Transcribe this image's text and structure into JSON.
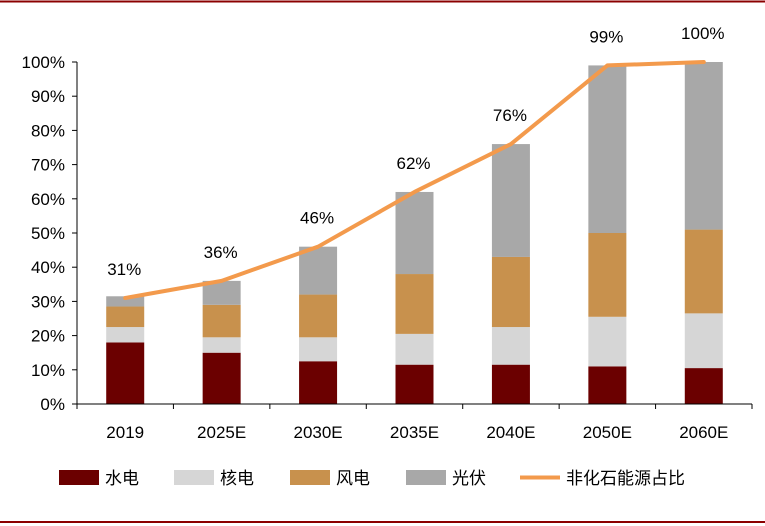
{
  "chart_data": {
    "type": "bar",
    "stacked": true,
    "title": "",
    "xlabel": "",
    "ylabel": "",
    "ylim": [
      0,
      100
    ],
    "y_ticks": [
      "0%",
      "10%",
      "20%",
      "30%",
      "40%",
      "50%",
      "60%",
      "70%",
      "80%",
      "90%",
      "100%"
    ],
    "categories": [
      "2019",
      "2025E",
      "2030E",
      "2035E",
      "2040E",
      "2050E",
      "2060E"
    ],
    "series": [
      {
        "name": "水电",
        "kind": "bar",
        "color": "#6b0000",
        "values": [
          18,
          15,
          12.5,
          11.5,
          11.5,
          11,
          10.5
        ]
      },
      {
        "name": "核电",
        "kind": "bar",
        "color": "#d6d6d6",
        "values": [
          4.5,
          4.5,
          7,
          9,
          11,
          14.5,
          16
        ]
      },
      {
        "name": "风电",
        "kind": "bar",
        "color": "#c8914d",
        "values": [
          6,
          9.5,
          12.5,
          17.5,
          20.5,
          24.5,
          24.5
        ]
      },
      {
        "name": "光伏",
        "kind": "bar",
        "color": "#a8a8a8",
        "values": [
          3,
          7,
          14,
          24,
          33,
          49,
          49
        ]
      },
      {
        "name": "非化石能源占比",
        "kind": "line",
        "color": "#f39a4c",
        "values": [
          31,
          36,
          46,
          62,
          76,
          99,
          100
        ]
      }
    ],
    "data_labels": [
      "31%",
      "36%",
      "46%",
      "62%",
      "76%",
      "99%",
      "100%"
    ],
    "legend_position": "bottom",
    "grid": false,
    "frame_color": "#8b0000"
  }
}
